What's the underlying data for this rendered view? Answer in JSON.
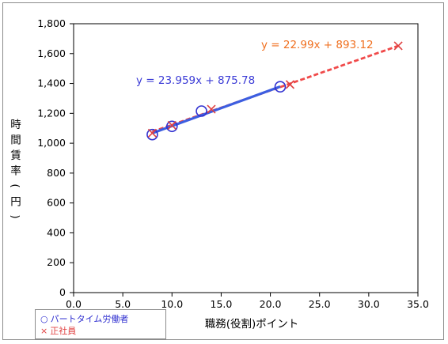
{
  "chart_data": {
    "type": "scatter",
    "xlabel": "職務(役割)ポイント",
    "ylabel": "時間賃率(円)",
    "ylabel_chars": [
      "時",
      "間",
      "賃",
      "率",
      "(",
      "円",
      ")"
    ],
    "xlim": [
      0,
      35
    ],
    "ylim": [
      0,
      1800
    ],
    "x_ticks": [
      "0.0",
      "5.0",
      "10.0",
      "15.0",
      "20.0",
      "25.0",
      "30.0",
      "35.0"
    ],
    "y_ticks": [
      "0",
      "200",
      "400",
      "600",
      "800",
      "1,000",
      "1,200",
      "1,400",
      "1,600",
      "1,800"
    ],
    "grid": false,
    "legend_position": "bottom-left",
    "series": [
      {
        "name": "パートタイム労働者",
        "marker": "circle",
        "color": "#3030d0",
        "points": [
          [
            8,
            1058
          ],
          [
            10,
            1113
          ],
          [
            13,
            1215
          ],
          [
            21,
            1378
          ]
        ],
        "trendline": {
          "equation": "y = 23.959x + 875.78",
          "slope": 23.959,
          "intercept": 875.78,
          "x_range": [
            8,
            21
          ],
          "color": "#3d5ee0"
        }
      },
      {
        "name": "正社員",
        "marker": "x",
        "color": "#e04040",
        "points": [
          [
            8,
            1068
          ],
          [
            10,
            1120
          ],
          [
            14,
            1228
          ],
          [
            22,
            1393
          ],
          [
            33,
            1652
          ]
        ],
        "trendline": {
          "equation": "y = 22.99x + 893.12",
          "slope": 22.99,
          "intercept": 893.12,
          "x_range": [
            8,
            33
          ],
          "color": "#f04a4a"
        }
      }
    ]
  },
  "legend": {
    "items": [
      {
        "symbol": "○",
        "label": "パートタイム労働者"
      },
      {
        "symbol": "×",
        "label": "正社員"
      }
    ]
  }
}
